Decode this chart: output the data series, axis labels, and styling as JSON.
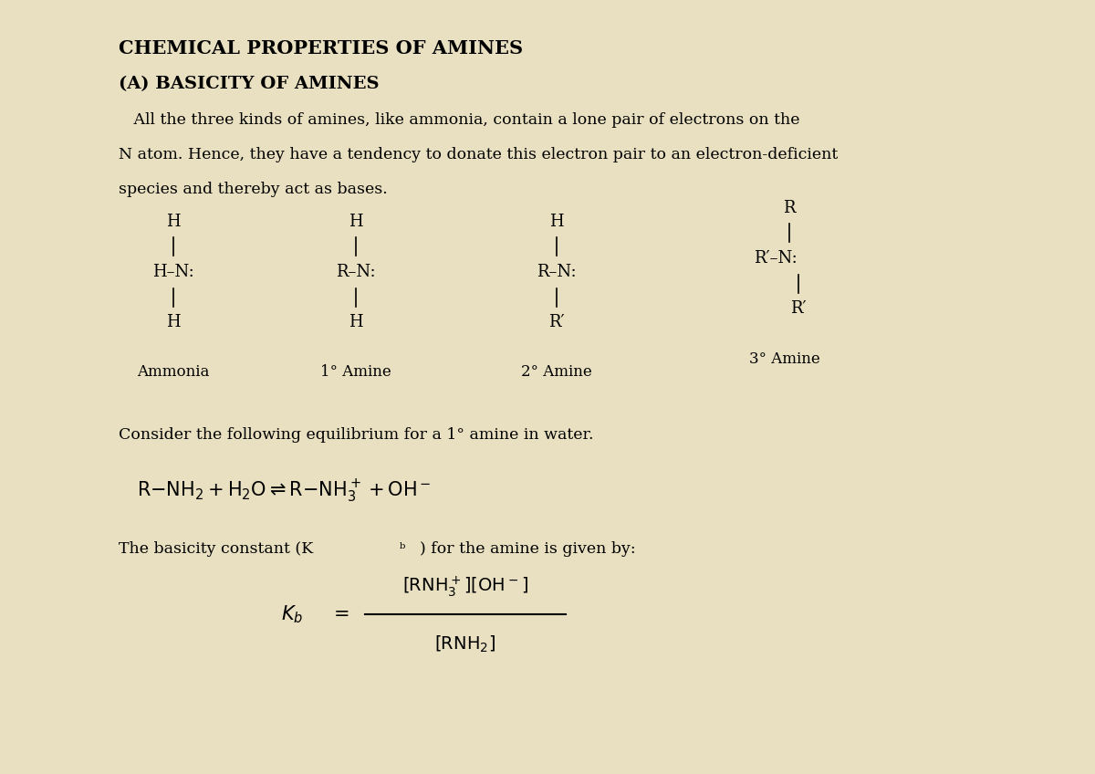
{
  "title": "CHEMICAL PROPERTIES OF AMINES",
  "subtitle": "(A) BASICITY OF AMINES",
  "para1": "   All the three kinds of amines, like ammonia, contain a lone pair of electrons on the\nN atom. Hence, they have a tendency to donate this electron pair to an electron-deficient\nspecies and thereby act as bases.",
  "consider_text": "Consider the following equilibrium for a 1° amine in water.",
  "equation": "R–NH₂ + H₂O ⇌ R–NH₃⁺ + OH⁻",
  "basicity_text": "The basicity constant (Kᵇ) for the amine is given by:",
  "bg_color": "#f5f0dc",
  "text_color": "#000000",
  "page_bg": "#e8e0c0"
}
